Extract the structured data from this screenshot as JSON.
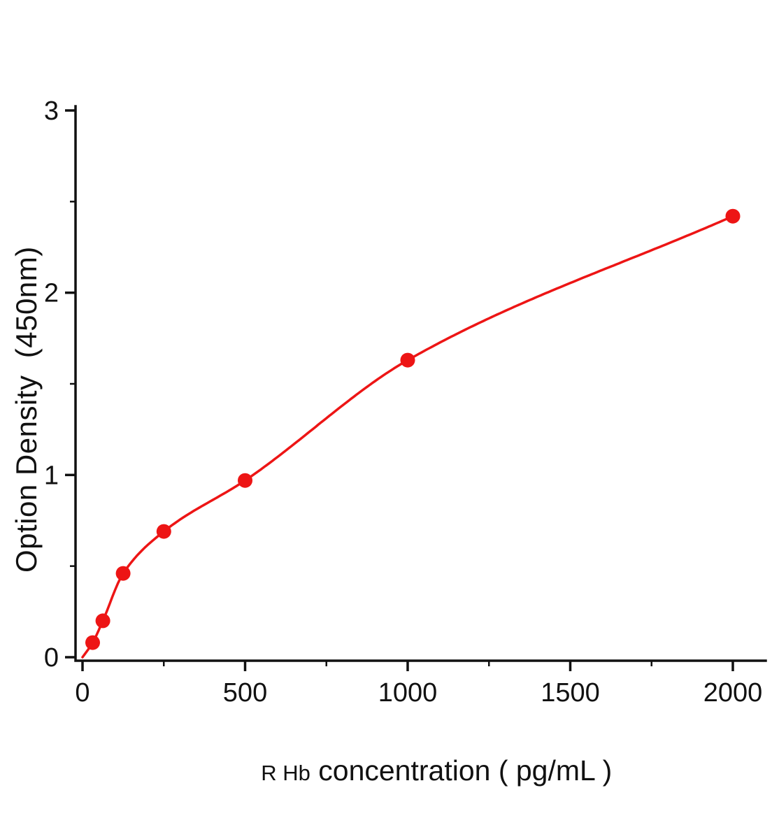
{
  "chart_data": {
    "type": "scatter",
    "title": "",
    "xlabel_prefix": "R Hb",
    "xlabel_rest": " concentration ( pg/mL )",
    "ylabel": "Option Density  (450nm)",
    "x": [
      31.25,
      62.5,
      125,
      250,
      500,
      1000,
      2000
    ],
    "y": [
      0.08,
      0.2,
      0.46,
      0.69,
      0.97,
      1.63,
      2.42
    ],
    "curve_start_x": 0,
    "curve_start_y": 0,
    "xlim": [
      0,
      2000
    ],
    "ylim": [
      0,
      3
    ],
    "x_ticks": [
      0,
      500,
      1000,
      1500,
      2000
    ],
    "y_ticks": [
      0,
      1,
      2,
      3
    ],
    "x_minor_step": 250,
    "y_minor_step": 0.5,
    "point_color": "#ed1515",
    "line_color": "#ed1515",
    "axis_color": "#111111",
    "legend": "none",
    "grid": "off"
  }
}
